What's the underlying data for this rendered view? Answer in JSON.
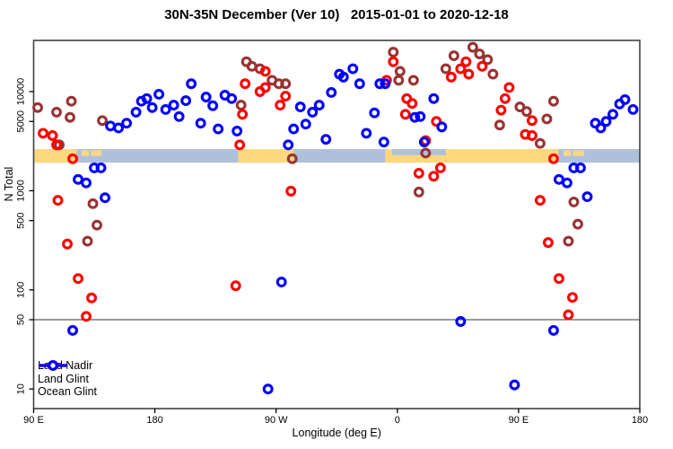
{
  "title": "30N-35N December (Ver 10)   2015-01-01 to 2020-12-18",
  "colors": {
    "land_nadir": "#993333",
    "land_glint": "#ff0000",
    "ocean_glint": "#0000ff",
    "band_ocean": "#aec1dc",
    "band_land": "#ffd77e",
    "frame": "#404040",
    "tick": "#000000",
    "ref_line": "#333333"
  },
  "axes": {
    "x_label": "Longitude (deg E)",
    "y_label": "N Total",
    "x_ticks": [
      {
        "deg": 90,
        "label": "90 E"
      },
      {
        "deg": 180,
        "label": "180"
      },
      {
        "deg": 270,
        "label": "90 W"
      },
      {
        "deg": 360,
        "label": "0"
      },
      {
        "deg": 450,
        "label": "90 E"
      },
      {
        "deg": 540,
        "label": "180"
      }
    ],
    "y_ticks": [
      {
        "value": 10,
        "label": "10"
      },
      {
        "value": 50,
        "label": "50"
      },
      {
        "value": 100,
        "label": "100"
      },
      {
        "value": 500,
        "label": "500"
      },
      {
        "value": 1000,
        "label": "1000"
      },
      {
        "value": 5000,
        "label": "5000"
      },
      {
        "value": 10000,
        "label": "10000"
      }
    ],
    "ref_line_value": 50
  },
  "geo_band": {
    "top_value": 2630,
    "bottom_value": 1920,
    "ocean_deg": [
      90,
      540
    ],
    "land_deg": [
      [
        90,
        122
      ],
      [
        241.8,
        283
      ],
      [
        351,
        479.5
      ]
    ],
    "sea_overlay_deg": [
      [
        356,
        396
      ]
    ],
    "island_specks_deg": [
      [
        125.5,
        131
      ],
      [
        132.5,
        140.5
      ],
      [
        483.5,
        489
      ],
      [
        490.5,
        498.5
      ]
    ]
  },
  "legend": [
    {
      "label": "Land Nadir",
      "series": "land_nadir"
    },
    {
      "label": "Land Glint",
      "series": "land_glint"
    },
    {
      "label": "Ocean Glint",
      "series": "ocean_glint"
    }
  ],
  "chart_data": {
    "type": "scatter",
    "title": "30N-35N December (Ver 10)   2015-01-01 to 2020-12-18",
    "xlabel": "Longitude (deg E)",
    "ylabel": "N Total",
    "x_axis_deg_range": [
      90,
      540
    ],
    "y_scale": "log",
    "y_range": [
      8.5,
      33000
    ],
    "legend_position": "bottom-left",
    "series": [
      {
        "name": "Land Nadir",
        "color_key": "land_nadir",
        "points": [
          [
            93,
            6900
          ],
          [
            107,
            6200
          ],
          [
            118,
            8000
          ],
          [
            117,
            5500
          ],
          [
            141,
            5100
          ],
          [
            109,
            2900
          ],
          [
            134,
            740
          ],
          [
            137,
            450
          ],
          [
            130,
            310
          ],
          [
            248,
            20000
          ],
          [
            252,
            18000
          ],
          [
            258,
            17000
          ],
          [
            267,
            13000
          ],
          [
            272,
            12000
          ],
          [
            277,
            12000
          ],
          [
            244,
            7300
          ],
          [
            282,
            2100
          ],
          [
            357,
            25000
          ],
          [
            362,
            16000
          ],
          [
            361,
            13000
          ],
          [
            372,
            13000
          ],
          [
            376,
            970
          ],
          [
            381,
            2400
          ],
          [
            396,
            17000
          ],
          [
            402,
            23000
          ],
          [
            416,
            28000
          ],
          [
            421,
            24000
          ],
          [
            427,
            21000
          ],
          [
            431,
            15000
          ],
          [
            436,
            4600
          ],
          [
            451,
            7000
          ],
          [
            456,
            6300
          ],
          [
            466,
            3000
          ],
          [
            471,
            5300
          ],
          [
            476,
            8000
          ],
          [
            487,
            310
          ],
          [
            491,
            770
          ],
          [
            494,
            460
          ]
        ]
      },
      {
        "name": "Land Glint",
        "color_key": "land_glint",
        "points": [
          [
            97,
            3800
          ],
          [
            104,
            3600
          ],
          [
            107,
            2900
          ],
          [
            119,
            2100
          ],
          [
            108,
            800
          ],
          [
            115,
            290
          ],
          [
            123,
            130
          ],
          [
            133,
            83
          ],
          [
            129,
            54
          ],
          [
            243,
            2900
          ],
          [
            245,
            5900
          ],
          [
            247,
            12000
          ],
          [
            258,
            10000
          ],
          [
            262,
            16000
          ],
          [
            262,
            11000
          ],
          [
            277,
            9000
          ],
          [
            273,
            7300
          ],
          [
            281,
            990
          ],
          [
            240,
            110
          ],
          [
            352,
            13000
          ],
          [
            357,
            20000
          ],
          [
            367,
            8500
          ],
          [
            371,
            7600
          ],
          [
            366,
            5900
          ],
          [
            389,
            5000
          ],
          [
            381,
            3200
          ],
          [
            376,
            1500
          ],
          [
            387,
            1400
          ],
          [
            392,
            1700
          ],
          [
            400,
            14000
          ],
          [
            407,
            17000
          ],
          [
            411,
            20000
          ],
          [
            413,
            15000
          ],
          [
            423,
            18000
          ],
          [
            437,
            6500
          ],
          [
            440,
            8500
          ],
          [
            443,
            11000
          ],
          [
            455,
            3700
          ],
          [
            460,
            5100
          ],
          [
            460,
            3600
          ],
          [
            476,
            2100
          ],
          [
            466,
            800
          ],
          [
            472,
            300
          ],
          [
            480,
            130
          ],
          [
            490,
            84
          ],
          [
            487,
            56
          ]
        ]
      },
      {
        "name": "Ocean Glint",
        "color_key": "ocean_glint",
        "points": [
          [
            147,
            4500
          ],
          [
            153,
            4300
          ],
          [
            159,
            4800
          ],
          [
            166,
            6200
          ],
          [
            170,
            8000
          ],
          [
            174,
            8500
          ],
          [
            178,
            6900
          ],
          [
            183,
            9400
          ],
          [
            188,
            6600
          ],
          [
            194,
            7300
          ],
          [
            198,
            5600
          ],
          [
            203,
            8100
          ],
          [
            207,
            12000
          ],
          [
            218,
            8800
          ],
          [
            223,
            7200
          ],
          [
            232,
            9200
          ],
          [
            237,
            8500
          ],
          [
            214,
            4800
          ],
          [
            227,
            4200
          ],
          [
            241,
            4000
          ],
          [
            279,
            2900
          ],
          [
            283,
            4200
          ],
          [
            288,
            7000
          ],
          [
            292,
            4700
          ],
          [
            297,
            6200
          ],
          [
            302,
            7300
          ],
          [
            307,
            3300
          ],
          [
            311,
            9800
          ],
          [
            317,
            15000
          ],
          [
            320,
            14000
          ],
          [
            327,
            17000
          ],
          [
            332,
            12000
          ],
          [
            347,
            12000
          ],
          [
            351,
            12000
          ],
          [
            343,
            6100
          ],
          [
            337,
            3800
          ],
          [
            350,
            3100
          ],
          [
            373,
            5500
          ],
          [
            377,
            5600
          ],
          [
            380,
            3100
          ],
          [
            387,
            8500
          ],
          [
            393,
            4400
          ],
          [
            135,
            1700
          ],
          [
            140,
            1700
          ],
          [
            123,
            1300
          ],
          [
            129,
            1200
          ],
          [
            143,
            850
          ],
          [
            119,
            39
          ],
          [
            264,
            10
          ],
          [
            274,
            120
          ],
          [
            407,
            48
          ],
          [
            480,
            1300
          ],
          [
            486,
            1200
          ],
          [
            491,
            1700
          ],
          [
            496,
            1700
          ],
          [
            501,
            870
          ],
          [
            476,
            39
          ],
          [
            447,
            11
          ],
          [
            507,
            4800
          ],
          [
            511,
            4300
          ],
          [
            515,
            5000
          ],
          [
            520,
            5900
          ],
          [
            525,
            7500
          ],
          [
            529,
            8300
          ],
          [
            535,
            6600
          ]
        ]
      }
    ]
  }
}
